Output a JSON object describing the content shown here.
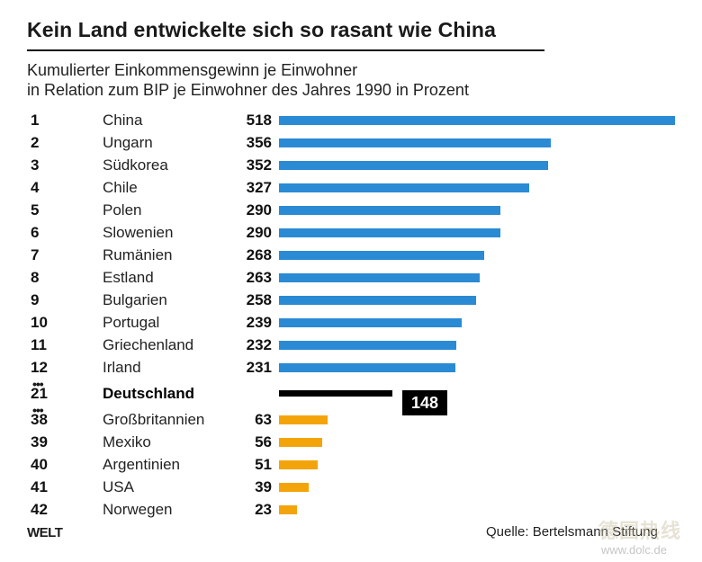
{
  "title": "Kein Land entwickelte sich so rasant wie China",
  "subtitle_line1": "Kumulierter Einkommensgewinn je Einwohner",
  "subtitle_line2": "in Relation zum BIP je Einwohner des Jahres 1990 in Prozent",
  "colors": {
    "top": "#2a8ad4",
    "bottom": "#f4a40b",
    "germany": "#000000"
  },
  "chart_data": {
    "type": "bar",
    "orientation": "horizontal",
    "max_value": 518,
    "rows": [
      {
        "rank": "1",
        "country": "China",
        "value": 518,
        "group": "top"
      },
      {
        "rank": "2",
        "country": "Ungarn",
        "value": 356,
        "group": "top"
      },
      {
        "rank": "3",
        "country": "Südkorea",
        "value": 352,
        "group": "top"
      },
      {
        "rank": "4",
        "country": "Chile",
        "value": 327,
        "group": "top"
      },
      {
        "rank": "5",
        "country": "Polen",
        "value": 290,
        "group": "top"
      },
      {
        "rank": "6",
        "country": "Slowenien",
        "value": 290,
        "group": "top"
      },
      {
        "rank": "7",
        "country": "Rumänien",
        "value": 268,
        "group": "top"
      },
      {
        "rank": "8",
        "country": "Estland",
        "value": 263,
        "group": "top"
      },
      {
        "rank": "9",
        "country": "Bulgarien",
        "value": 258,
        "group": "top"
      },
      {
        "rank": "10",
        "country": "Portugal",
        "value": 239,
        "group": "top"
      },
      {
        "rank": "11",
        "country": "Griechenland",
        "value": 232,
        "group": "top"
      },
      {
        "rank": "12",
        "country": "Irland",
        "value": 231,
        "group": "top"
      },
      {
        "rank": "21",
        "country": "Deutschland",
        "value": 148,
        "group": "germany"
      },
      {
        "rank": "38",
        "country": "Großbritannien",
        "value": 63,
        "group": "bottom"
      },
      {
        "rank": "39",
        "country": "Mexiko",
        "value": 56,
        "group": "bottom"
      },
      {
        "rank": "40",
        "country": "Argentinien",
        "value": 51,
        "group": "bottom"
      },
      {
        "rank": "41",
        "country": "USA",
        "value": 39,
        "group": "bottom"
      },
      {
        "rank": "42",
        "country": "Norwegen",
        "value": 23,
        "group": "bottom"
      }
    ]
  },
  "footer": {
    "logo": "WELT",
    "source": "Quelle: Bertelsmann Stiftung",
    "watermark": "德国热线",
    "watermark_url": "www.dolc.de"
  }
}
